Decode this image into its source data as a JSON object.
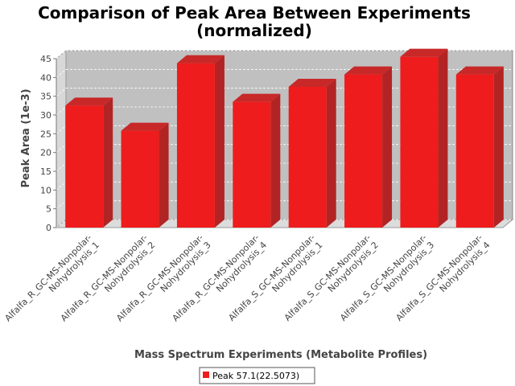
{
  "chart_data": {
    "type": "bar",
    "title_line1": "Comparison of Peak Area Between Experiments",
    "title_line2": "(normalized)",
    "xlabel": "Mass Spectrum Experiments (Metabolite Profiles)",
    "ylabel": "Peak Area (1e-3)",
    "categories": [
      [
        "Alfalfa_R_GC-MS-Nonpolar-",
        "Nohydrolysis_1"
      ],
      [
        "Alfalfa_R_GC-MS-Nonpolar-",
        "Nohydrolysis_2"
      ],
      [
        "Alfalfa_R_GC-MS-Nonpolar-",
        "Nohydrolysis_3"
      ],
      [
        "Alfalfa_R_GC-MS-Nonpolar-",
        "Nohydrolysis_4"
      ],
      [
        "Alfalfa_S_GC-MS-Nonpolar-",
        "Nohydrolysis_1"
      ],
      [
        "Alfalfa_S_GC-MS-Nonpolar-",
        "Nohydrolysis_2"
      ],
      [
        "Alfalfa_S_GC-MS-Nonpolar-",
        "Nohydrolysis_3"
      ],
      [
        "Alfalfa_S_GC-MS-Nonpolar-",
        "Nohydrolysis_4"
      ]
    ],
    "series": [
      {
        "name": "Peak 57.1(22.5073)",
        "color": "#ee1c1c",
        "values": [
          32.5,
          25.8,
          43.8,
          33.5,
          37.5,
          40.8,
          45.5,
          40.8
        ]
      }
    ],
    "ylim": [
      0,
      45
    ],
    "yticks": [
      0,
      5,
      10,
      15,
      20,
      25,
      30,
      35,
      40,
      45
    ],
    "grid": true,
    "legend": "bottom-center",
    "colors": {
      "plot_background": "#c0c0c0",
      "bar": "#ee1c1c"
    }
  }
}
